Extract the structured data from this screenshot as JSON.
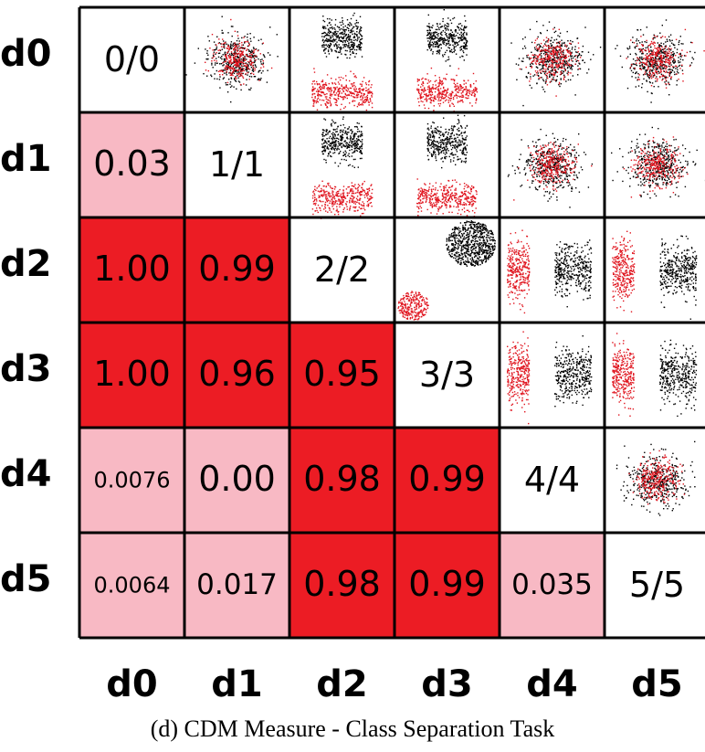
{
  "chart_data": {
    "type": "heatmap",
    "row_labels": [
      "d0",
      "d1",
      "d2",
      "d3",
      "d4",
      "d5"
    ],
    "col_labels": [
      "d0",
      "d1",
      "d2",
      "d3",
      "d4",
      "d5"
    ],
    "diagonal_labels": [
      "0/0",
      "1/1",
      "2/2",
      "3/3",
      "4/4",
      "5/5"
    ],
    "lower_cells": [
      {
        "row": 1,
        "col": 0,
        "label": "0.03",
        "value": 0.03
      },
      {
        "row": 2,
        "col": 0,
        "label": "1.00",
        "value": 1.0
      },
      {
        "row": 2,
        "col": 1,
        "label": "0.99",
        "value": 0.99
      },
      {
        "row": 3,
        "col": 0,
        "label": "1.00",
        "value": 1.0
      },
      {
        "row": 3,
        "col": 1,
        "label": "0.96",
        "value": 0.96
      },
      {
        "row": 3,
        "col": 2,
        "label": "0.95",
        "value": 0.95
      },
      {
        "row": 4,
        "col": 0,
        "label": "0.0076",
        "value": 0.0076
      },
      {
        "row": 4,
        "col": 1,
        "label": "0.00",
        "value": 0.0
      },
      {
        "row": 4,
        "col": 2,
        "label": "0.98",
        "value": 0.98
      },
      {
        "row": 4,
        "col": 3,
        "label": "0.99",
        "value": 0.99
      },
      {
        "row": 5,
        "col": 0,
        "label": "0.0064",
        "value": 0.0064
      },
      {
        "row": 5,
        "col": 1,
        "label": "0.017",
        "value": 0.017
      },
      {
        "row": 5,
        "col": 2,
        "label": "0.98",
        "value": 0.98
      },
      {
        "row": 5,
        "col": 3,
        "label": "0.99",
        "value": 0.99
      },
      {
        "row": 5,
        "col": 4,
        "label": "0.035",
        "value": 0.035
      }
    ],
    "upper_cells": [
      {
        "row": 0,
        "col": 1,
        "pattern": "overlap"
      },
      {
        "row": 0,
        "col": 2,
        "pattern": "split-vertical"
      },
      {
        "row": 0,
        "col": 3,
        "pattern": "split-vertical"
      },
      {
        "row": 0,
        "col": 4,
        "pattern": "overlap"
      },
      {
        "row": 0,
        "col": 5,
        "pattern": "overlap"
      },
      {
        "row": 1,
        "col": 2,
        "pattern": "split-vertical"
      },
      {
        "row": 1,
        "col": 3,
        "pattern": "split-vertical"
      },
      {
        "row": 1,
        "col": 4,
        "pattern": "overlap"
      },
      {
        "row": 1,
        "col": 5,
        "pattern": "overlap"
      },
      {
        "row": 2,
        "col": 3,
        "pattern": "circles"
      },
      {
        "row": 2,
        "col": 4,
        "pattern": "split-horizontal"
      },
      {
        "row": 2,
        "col": 5,
        "pattern": "split-horizontal"
      },
      {
        "row": 3,
        "col": 4,
        "pattern": "split-horizontal"
      },
      {
        "row": 3,
        "col": 5,
        "pattern": "split-horizontal"
      },
      {
        "row": 4,
        "col": 5,
        "pattern": "overlap"
      }
    ],
    "colors": {
      "high": "#ec1c24",
      "low": "#f8b9c4",
      "diagonal": "#ffffff",
      "points_a": "#000000",
      "points_b": "#e0141e",
      "grid": "#000000"
    },
    "threshold": 0.5
  },
  "caption": "(d)  CDM Measure - Class Separation Task"
}
